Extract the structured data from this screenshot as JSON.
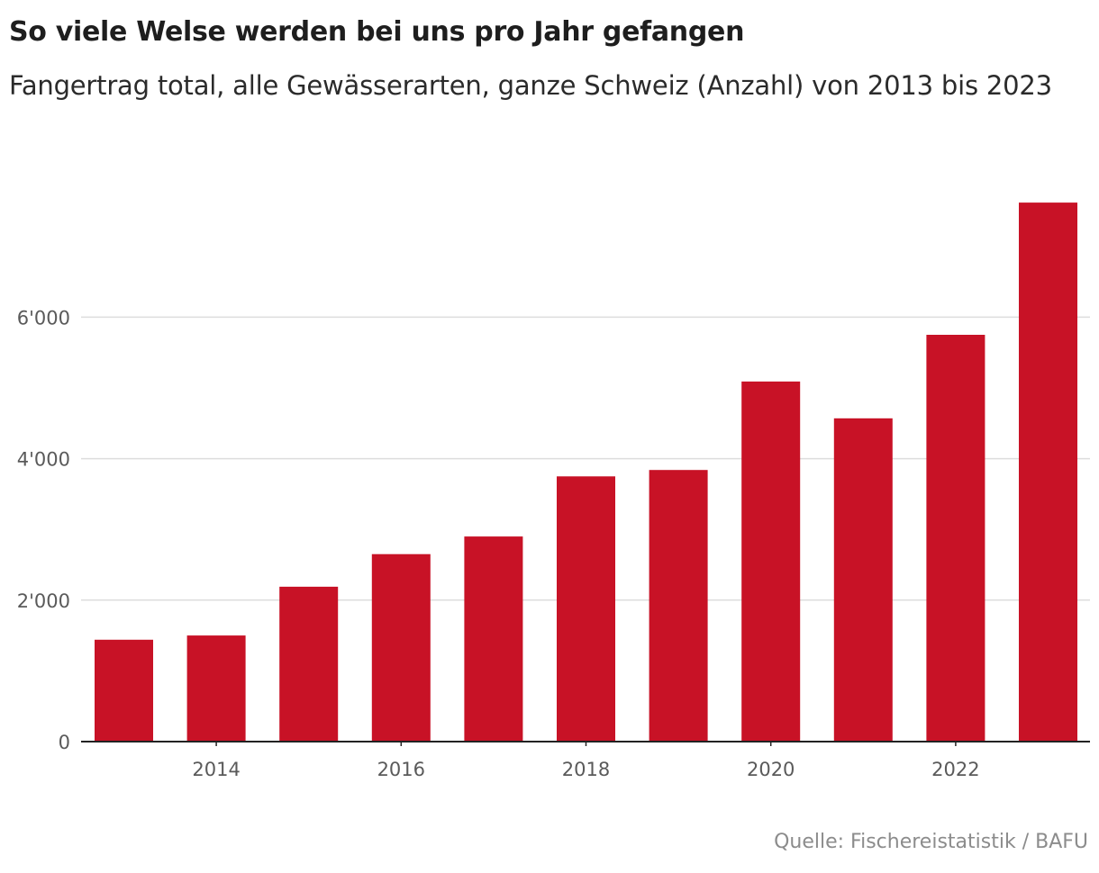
{
  "header": {
    "title": "So viele Welse werden bei uns pro Jahr gefangen",
    "subtitle": "Fangertrag total, alle Gewässerarten, ganze Schweiz (Anzahl) von 2013 bis 2023"
  },
  "footer": {
    "source": "Quelle: Fischereistatistik / BAFU"
  },
  "colors": {
    "bar": "#c81226",
    "grid": "#dddddd",
    "axis": "#222222"
  },
  "chart_data": {
    "type": "bar",
    "title": "So viele Welse werden bei uns pro Jahr gefangen",
    "subtitle": "Fangertrag total, alle Gewässerarten, ganze Schweiz (Anzahl) von 2013 bis 2023",
    "categories": [
      "2013",
      "2014",
      "2015",
      "2016",
      "2017",
      "2018",
      "2019",
      "2020",
      "2021",
      "2022",
      "2023"
    ],
    "values": [
      1440,
      1500,
      2190,
      2650,
      2900,
      3750,
      3840,
      5090,
      4570,
      5750,
      7620
    ],
    "x_tick_labels": [
      "2014",
      "2016",
      "2018",
      "2020",
      "2022"
    ],
    "y_ticks": [
      0,
      2000,
      4000,
      6000
    ],
    "y_tick_labels": [
      "0",
      "2'000",
      "4'000",
      "6'000"
    ],
    "ylim": [
      0,
      7620
    ],
    "xlabel": "",
    "ylabel": "",
    "grid": true,
    "legend": "none"
  }
}
